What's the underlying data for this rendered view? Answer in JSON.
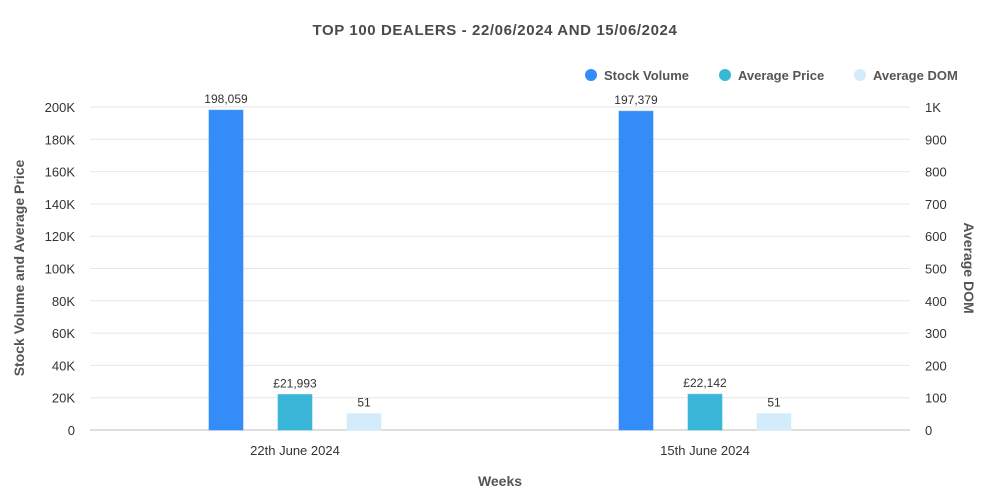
{
  "chart_data": {
    "type": "bar",
    "title": "TOP 100 DEALERS -  22/06/2024 AND 15/06/2024",
    "xlabel": "Weeks",
    "ylabel_left": "Stock Volume and Average Price",
    "ylabel_right": "Average DOM",
    "categories": [
      "22th June 2024",
      "15th June 2024"
    ],
    "ylim_left": [
      0,
      200000
    ],
    "ylim_right": [
      0,
      1000
    ],
    "yticks_left": [
      "0",
      "20K",
      "40K",
      "60K",
      "80K",
      "100K",
      "120K",
      "140K",
      "160K",
      "180K",
      "200K"
    ],
    "yticks_right": [
      "0",
      "100",
      "200",
      "300",
      "400",
      "500",
      "600",
      "700",
      "800",
      "900",
      "1K"
    ],
    "grid": true,
    "legend_position": "top-right",
    "series": [
      {
        "name": "Stock Volume",
        "axis": "left",
        "color": "#338cf8",
        "values": [
          198059,
          197379
        ],
        "labels": [
          "198,059",
          "197,379"
        ]
      },
      {
        "name": "Average Price",
        "axis": "left",
        "color": "#3ab7d8",
        "values": [
          21993,
          22142
        ],
        "labels": [
          "£21,993",
          "£22,142"
        ]
      },
      {
        "name": "Average DOM",
        "axis": "right",
        "color": "#d3ecfb",
        "values": [
          51,
          51
        ],
        "labels": [
          "51",
          "51"
        ]
      }
    ]
  }
}
